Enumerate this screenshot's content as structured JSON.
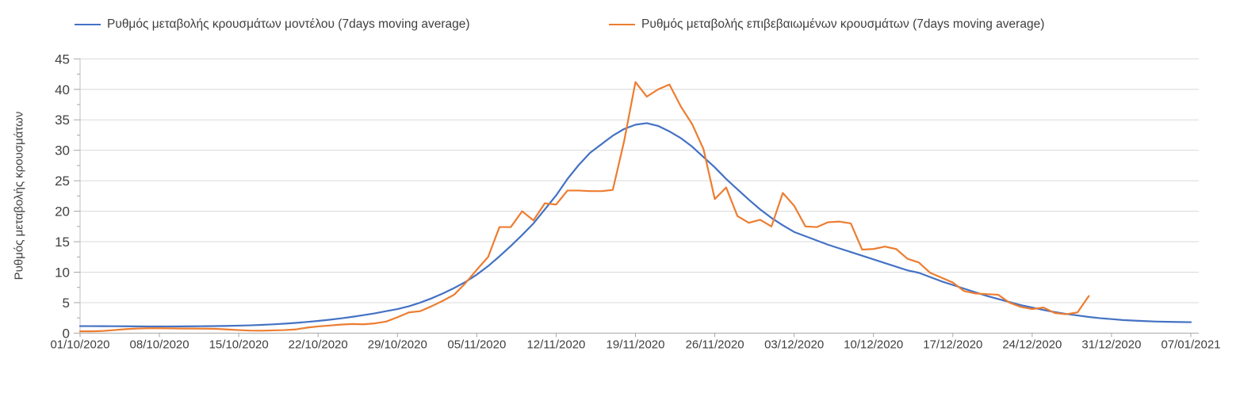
{
  "chart_data": {
    "type": "line",
    "title": "",
    "xlabel": "",
    "ylabel": "Ρυθμός μεταβολής κρουσμάτων",
    "ylim": [
      0,
      45
    ],
    "y_tick_step": 5,
    "y_minor_tick_step": 2.5,
    "grid": "horizontal",
    "legend_position": "top",
    "x_range_days": [
      0,
      98
    ],
    "x_tick_interval_days": 7,
    "x_tick_labels": [
      "01/10/2020",
      "08/10/2020",
      "15/10/2020",
      "22/10/2020",
      "29/10/2020",
      "05/11/2020",
      "12/11/2020",
      "19/11/2020",
      "26/11/2020",
      "03/12/2020",
      "10/12/2020",
      "17/12/2020",
      "24/12/2020",
      "31/12/2020",
      "07/01/2021"
    ],
    "colors": {
      "grid": "#d9d9d9",
      "axis": "#bfbfbf",
      "tick": "#a6a6a6",
      "text": "#404040"
    },
    "series": [
      {
        "name": "Ρυθμός μεταβολής κρουσμάτων μοντέλου (7days moving average)",
        "color": "#4472C4",
        "start_day": 0,
        "values": [
          1.15,
          1.15,
          1.14,
          1.13,
          1.12,
          1.11,
          1.1,
          1.1,
          1.1,
          1.11,
          1.12,
          1.14,
          1.16,
          1.19,
          1.23,
          1.28,
          1.35,
          1.44,
          1.55,
          1.68,
          1.83,
          2.0,
          2.2,
          2.42,
          2.67,
          2.95,
          3.25,
          3.6,
          3.95,
          4.4,
          5.0,
          5.7,
          6.5,
          7.4,
          8.4,
          9.6,
          11.0,
          12.6,
          14.3,
          16.1,
          18.0,
          20.3,
          22.6,
          25.3,
          27.6,
          29.6,
          31.0,
          32.4,
          33.5,
          34.2,
          34.45,
          34.0,
          33.1,
          32.0,
          30.6,
          28.9,
          27.2,
          25.3,
          23.6,
          21.9,
          20.3,
          18.9,
          17.7,
          16.6,
          15.9,
          15.2,
          14.5,
          13.9,
          13.3,
          12.7,
          12.1,
          11.5,
          10.9,
          10.3,
          9.9,
          9.2,
          8.5,
          7.9,
          7.3,
          6.7,
          6.1,
          5.6,
          5.1,
          4.6,
          4.2,
          3.8,
          3.45,
          3.15,
          2.9,
          2.65,
          2.45,
          2.3,
          2.15,
          2.05,
          1.97,
          1.9,
          1.86,
          1.82,
          1.8
        ]
      },
      {
        "name": "Ρυθμός μεταβολής επιβεβαιωμένων κρουσμάτων (7days moving average)",
        "color": "#ED7D31",
        "start_day": 0,
        "values": [
          0.3,
          0.3,
          0.35,
          0.5,
          0.65,
          0.75,
          0.8,
          0.8,
          0.78,
          0.75,
          0.75,
          0.73,
          0.7,
          0.6,
          0.5,
          0.42,
          0.4,
          0.45,
          0.5,
          0.6,
          0.9,
          1.1,
          1.25,
          1.4,
          1.5,
          1.45,
          1.6,
          1.9,
          2.6,
          3.4,
          3.6,
          4.4,
          5.3,
          6.3,
          8.2,
          10.4,
          12.5,
          17.4,
          17.4,
          20.0,
          18.5,
          21.3,
          21.1,
          23.4,
          23.4,
          23.3,
          23.3,
          23.5,
          31.5,
          41.2,
          38.8,
          40.0,
          40.8,
          37.2,
          34.3,
          30.2,
          22.0,
          23.9,
          19.2,
          18.1,
          18.6,
          17.5,
          23.0,
          20.9,
          17.5,
          17.4,
          18.2,
          18.3,
          18.0,
          13.7,
          13.8,
          14.2,
          13.8,
          12.2,
          11.6,
          9.9,
          9.1,
          8.3,
          6.9,
          6.5,
          6.4,
          6.3,
          5.0,
          4.3,
          3.95,
          4.2,
          3.3,
          3.1,
          3.4,
          6.1
        ]
      }
    ]
  }
}
